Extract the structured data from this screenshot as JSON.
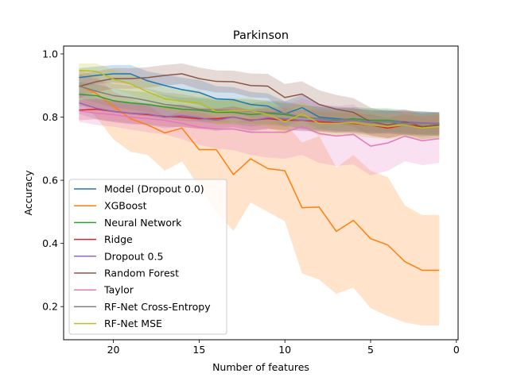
{
  "chart_data": {
    "type": "line",
    "title": "Parkinson",
    "xlabel": "Number of features",
    "ylabel": "Accuracy",
    "xlim": [
      22.9,
      -0.1
    ],
    "ylim": [
      0.095,
      1.025
    ],
    "xticks": [
      20,
      15,
      10,
      5,
      0
    ],
    "yticks": [
      0.2,
      0.4,
      0.6,
      0.8,
      1.0
    ],
    "ytick_labels": [
      "0.2",
      "0.4",
      "0.6",
      "0.8",
      "1.0"
    ],
    "legend_position": "lower-left",
    "x": [
      22,
      21,
      20,
      19,
      18,
      17,
      16,
      15,
      14,
      13,
      12,
      11,
      10,
      9,
      8,
      7,
      6,
      5,
      4,
      3,
      2,
      1
    ],
    "series": [
      {
        "name": "Model (Dropout 0.0)",
        "color": "#1f77b4",
        "values": [
          0.925,
          0.932,
          0.937,
          0.937,
          0.915,
          0.9,
          0.887,
          0.878,
          0.858,
          0.855,
          0.84,
          0.835,
          0.81,
          0.83,
          0.8,
          0.795,
          0.79,
          0.785,
          0.785,
          0.78,
          0.78,
          0.78
        ],
        "lower": [
          0.895,
          0.905,
          0.91,
          0.905,
          0.885,
          0.865,
          0.85,
          0.838,
          0.818,
          0.815,
          0.8,
          0.795,
          0.77,
          0.79,
          0.762,
          0.757,
          0.752,
          0.748,
          0.748,
          0.745,
          0.745,
          0.745
        ],
        "upper": [
          0.955,
          0.96,
          0.965,
          0.965,
          0.945,
          0.935,
          0.925,
          0.918,
          0.898,
          0.895,
          0.88,
          0.875,
          0.85,
          0.87,
          0.838,
          0.833,
          0.828,
          0.822,
          0.822,
          0.815,
          0.815,
          0.815
        ]
      },
      {
        "name": "XGBoost",
        "color": "#ff7f0e",
        "values": [
          0.9,
          0.875,
          0.835,
          0.795,
          0.775,
          0.75,
          0.765,
          0.697,
          0.697,
          0.618,
          0.668,
          0.637,
          0.63,
          0.513,
          0.515,
          0.438,
          0.473,
          0.415,
          0.395,
          0.342,
          0.315,
          0.315
        ],
        "lower": [
          0.85,
          0.8,
          0.73,
          0.69,
          0.68,
          0.63,
          0.66,
          0.58,
          0.5,
          0.44,
          0.53,
          0.5,
          0.47,
          0.305,
          0.285,
          0.24,
          0.26,
          0.195,
          0.17,
          0.15,
          0.14,
          0.14
        ],
        "upper": [
          0.95,
          0.93,
          0.88,
          0.86,
          0.84,
          0.8,
          0.82,
          0.815,
          0.8,
          0.78,
          0.8,
          0.79,
          0.78,
          0.72,
          0.74,
          0.64,
          0.68,
          0.63,
          0.61,
          0.52,
          0.49,
          0.49
        ]
      },
      {
        "name": "Neural Network",
        "color": "#2ca02c",
        "values": [
          0.872,
          0.868,
          0.852,
          0.845,
          0.84,
          0.832,
          0.825,
          0.822,
          0.815,
          0.815,
          0.808,
          0.812,
          0.808,
          0.8,
          0.795,
          0.79,
          0.795,
          0.79,
          0.79,
          0.785,
          0.78,
          0.778
        ],
        "lower": [
          0.835,
          0.83,
          0.815,
          0.808,
          0.803,
          0.795,
          0.788,
          0.785,
          0.778,
          0.778,
          0.77,
          0.775,
          0.77,
          0.763,
          0.758,
          0.753,
          0.758,
          0.753,
          0.753,
          0.748,
          0.743,
          0.74
        ],
        "upper": [
          0.91,
          0.905,
          0.89,
          0.883,
          0.878,
          0.87,
          0.862,
          0.86,
          0.853,
          0.853,
          0.845,
          0.85,
          0.845,
          0.838,
          0.832,
          0.828,
          0.832,
          0.828,
          0.828,
          0.822,
          0.818,
          0.815
        ]
      },
      {
        "name": "Ridge",
        "color": "#d62728",
        "values": [
          0.822,
          0.825,
          0.818,
          0.812,
          0.808,
          0.802,
          0.8,
          0.795,
          0.795,
          0.8,
          0.79,
          0.795,
          0.79,
          0.79,
          0.785,
          0.782,
          0.78,
          0.775,
          0.765,
          0.775,
          0.77,
          0.775
        ],
        "lower": [
          0.79,
          0.793,
          0.786,
          0.78,
          0.776,
          0.77,
          0.768,
          0.763,
          0.763,
          0.768,
          0.758,
          0.763,
          0.758,
          0.758,
          0.753,
          0.75,
          0.748,
          0.743,
          0.733,
          0.743,
          0.738,
          0.743
        ],
        "upper": [
          0.855,
          0.858,
          0.85,
          0.845,
          0.84,
          0.835,
          0.833,
          0.828,
          0.828,
          0.833,
          0.823,
          0.828,
          0.823,
          0.823,
          0.818,
          0.815,
          0.813,
          0.808,
          0.798,
          0.808,
          0.803,
          0.808
        ]
      },
      {
        "name": "Dropout 0.5",
        "color": "#9467bd",
        "values": [
          0.845,
          0.828,
          0.818,
          0.812,
          0.81,
          0.8,
          0.805,
          0.798,
          0.79,
          0.8,
          0.788,
          0.798,
          0.795,
          0.79,
          0.79,
          0.785,
          0.79,
          0.782,
          0.785,
          0.785,
          0.782,
          0.78
        ],
        "lower": [
          0.81,
          0.793,
          0.783,
          0.777,
          0.775,
          0.765,
          0.77,
          0.763,
          0.755,
          0.765,
          0.753,
          0.763,
          0.76,
          0.755,
          0.755,
          0.75,
          0.755,
          0.747,
          0.75,
          0.75,
          0.747,
          0.745
        ],
        "upper": [
          0.88,
          0.863,
          0.853,
          0.847,
          0.845,
          0.835,
          0.84,
          0.833,
          0.825,
          0.835,
          0.823,
          0.833,
          0.83,
          0.825,
          0.825,
          0.82,
          0.825,
          0.817,
          0.82,
          0.82,
          0.817,
          0.815
        ]
      },
      {
        "name": "Random Forest",
        "color": "#8c564b",
        "values": [
          0.897,
          0.912,
          0.922,
          0.922,
          0.925,
          0.932,
          0.937,
          0.922,
          0.913,
          0.912,
          0.9,
          0.898,
          0.862,
          0.873,
          0.84,
          0.825,
          0.815,
          0.785,
          0.775,
          0.785,
          0.77,
          0.775
        ],
        "lower": [
          0.86,
          0.88,
          0.89,
          0.89,
          0.893,
          0.9,
          0.905,
          0.888,
          0.878,
          0.877,
          0.863,
          0.86,
          0.82,
          0.833,
          0.795,
          0.78,
          0.77,
          0.74,
          0.733,
          0.745,
          0.73,
          0.735
        ],
        "upper": [
          0.935,
          0.945,
          0.955,
          0.955,
          0.958,
          0.965,
          0.97,
          0.957,
          0.948,
          0.947,
          0.938,
          0.937,
          0.905,
          0.913,
          0.885,
          0.87,
          0.86,
          0.83,
          0.818,
          0.825,
          0.81,
          0.815
        ]
      },
      {
        "name": "Taylor",
        "color": "#e377c2",
        "values": [
          0.82,
          0.812,
          0.808,
          0.8,
          0.795,
          0.79,
          0.78,
          0.768,
          0.762,
          0.762,
          0.752,
          0.752,
          0.752,
          0.77,
          0.748,
          0.74,
          0.745,
          0.708,
          0.718,
          0.74,
          0.725,
          0.732
        ],
        "lower": [
          0.785,
          0.775,
          0.77,
          0.76,
          0.752,
          0.745,
          0.73,
          0.712,
          0.7,
          0.695,
          0.68,
          0.672,
          0.668,
          0.68,
          0.655,
          0.645,
          0.65,
          0.615,
          0.63,
          0.66,
          0.648,
          0.655
        ],
        "upper": [
          0.855,
          0.85,
          0.845,
          0.84,
          0.838,
          0.835,
          0.83,
          0.825,
          0.825,
          0.83,
          0.825,
          0.832,
          0.836,
          0.86,
          0.842,
          0.835,
          0.84,
          0.8,
          0.806,
          0.82,
          0.802,
          0.81
        ]
      },
      {
        "name": "RF-Net Cross-Entropy",
        "color": "#7f7f7f",
        "values": [
          0.898,
          0.882,
          0.868,
          0.862,
          0.852,
          0.84,
          0.835,
          0.825,
          0.822,
          0.82,
          0.818,
          0.815,
          0.812,
          0.8,
          0.795,
          0.792,
          0.79,
          0.785,
          0.785,
          0.78,
          0.78,
          0.778
        ],
        "lower": [
          0.86,
          0.845,
          0.83,
          0.825,
          0.815,
          0.803,
          0.798,
          0.788,
          0.785,
          0.783,
          0.78,
          0.778,
          0.775,
          0.763,
          0.758,
          0.755,
          0.753,
          0.748,
          0.748,
          0.743,
          0.743,
          0.74
        ],
        "upper": [
          0.935,
          0.92,
          0.905,
          0.9,
          0.89,
          0.878,
          0.873,
          0.863,
          0.86,
          0.858,
          0.855,
          0.853,
          0.85,
          0.838,
          0.833,
          0.83,
          0.828,
          0.823,
          0.823,
          0.818,
          0.818,
          0.815
        ]
      },
      {
        "name": "RF-Net MSE",
        "color": "#bcbd22",
        "values": [
          0.948,
          0.945,
          0.92,
          0.905,
          0.88,
          0.858,
          0.85,
          0.845,
          0.818,
          0.82,
          0.82,
          0.808,
          0.785,
          0.81,
          0.78,
          0.78,
          0.782,
          0.775,
          0.77,
          0.775,
          0.765,
          0.77
        ],
        "lower": [
          0.925,
          0.92,
          0.89,
          0.872,
          0.845,
          0.82,
          0.81,
          0.805,
          0.778,
          0.78,
          0.78,
          0.768,
          0.745,
          0.77,
          0.74,
          0.74,
          0.742,
          0.735,
          0.73,
          0.735,
          0.725,
          0.73
        ],
        "upper": [
          0.97,
          0.97,
          0.95,
          0.938,
          0.915,
          0.895,
          0.89,
          0.885,
          0.858,
          0.86,
          0.86,
          0.848,
          0.825,
          0.85,
          0.82,
          0.82,
          0.822,
          0.815,
          0.81,
          0.815,
          0.805,
          0.81
        ]
      }
    ]
  }
}
